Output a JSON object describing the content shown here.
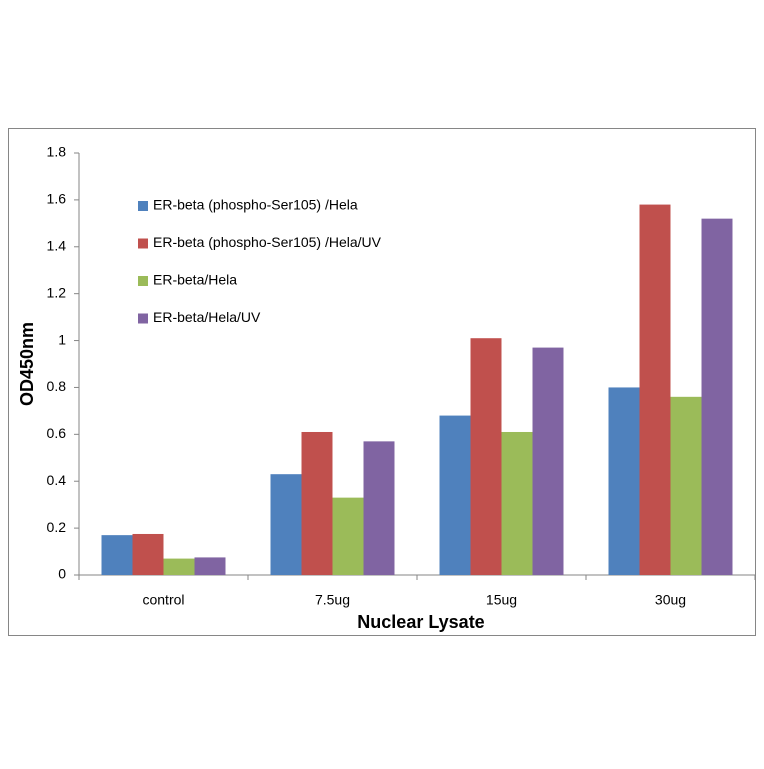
{
  "chart_data": {
    "type": "bar",
    "x_label": "Nuclear Lysate",
    "y_label": "OD450nm",
    "categories": [
      "control",
      "7.5ug",
      "15ug",
      "30ug"
    ],
    "series": [
      {
        "name": "ER-beta (phospho-Ser105) /Hela",
        "color": "#4f81bd",
        "values": [
          0.17,
          0.43,
          0.68,
          0.8
        ]
      },
      {
        "name": "ER-beta (phospho-Ser105) /Hela/UV",
        "color": "#c0504d",
        "values": [
          0.175,
          0.61,
          1.01,
          1.58
        ]
      },
      {
        "name": "ER-beta/Hela",
        "color": "#9bbb59",
        "values": [
          0.07,
          0.33,
          0.61,
          0.76
        ]
      },
      {
        "name": "ER-beta/Hela/UV",
        "color": "#8064a2",
        "values": [
          0.075,
          0.57,
          0.97,
          1.52
        ]
      }
    ],
    "ylim": [
      0,
      1.8
    ],
    "yticks": [
      0,
      {
        "value": 0.2,
        "label": "0.2"
      },
      {
        "value": 0.4,
        "label": "0.4"
      },
      {
        "value": 0.6,
        "label": "0.6"
      },
      {
        "value": 0.8,
        "label": "0.8"
      },
      1,
      {
        "value": 1.2,
        "label": "1.2"
      },
      {
        "value": 1.4,
        "label": "1.4"
      },
      {
        "value": 1.6,
        "label": "1.6"
      },
      {
        "value": 1.8,
        "label": "1.8"
      }
    ],
    "legend": "upper-left",
    "grid": false
  }
}
